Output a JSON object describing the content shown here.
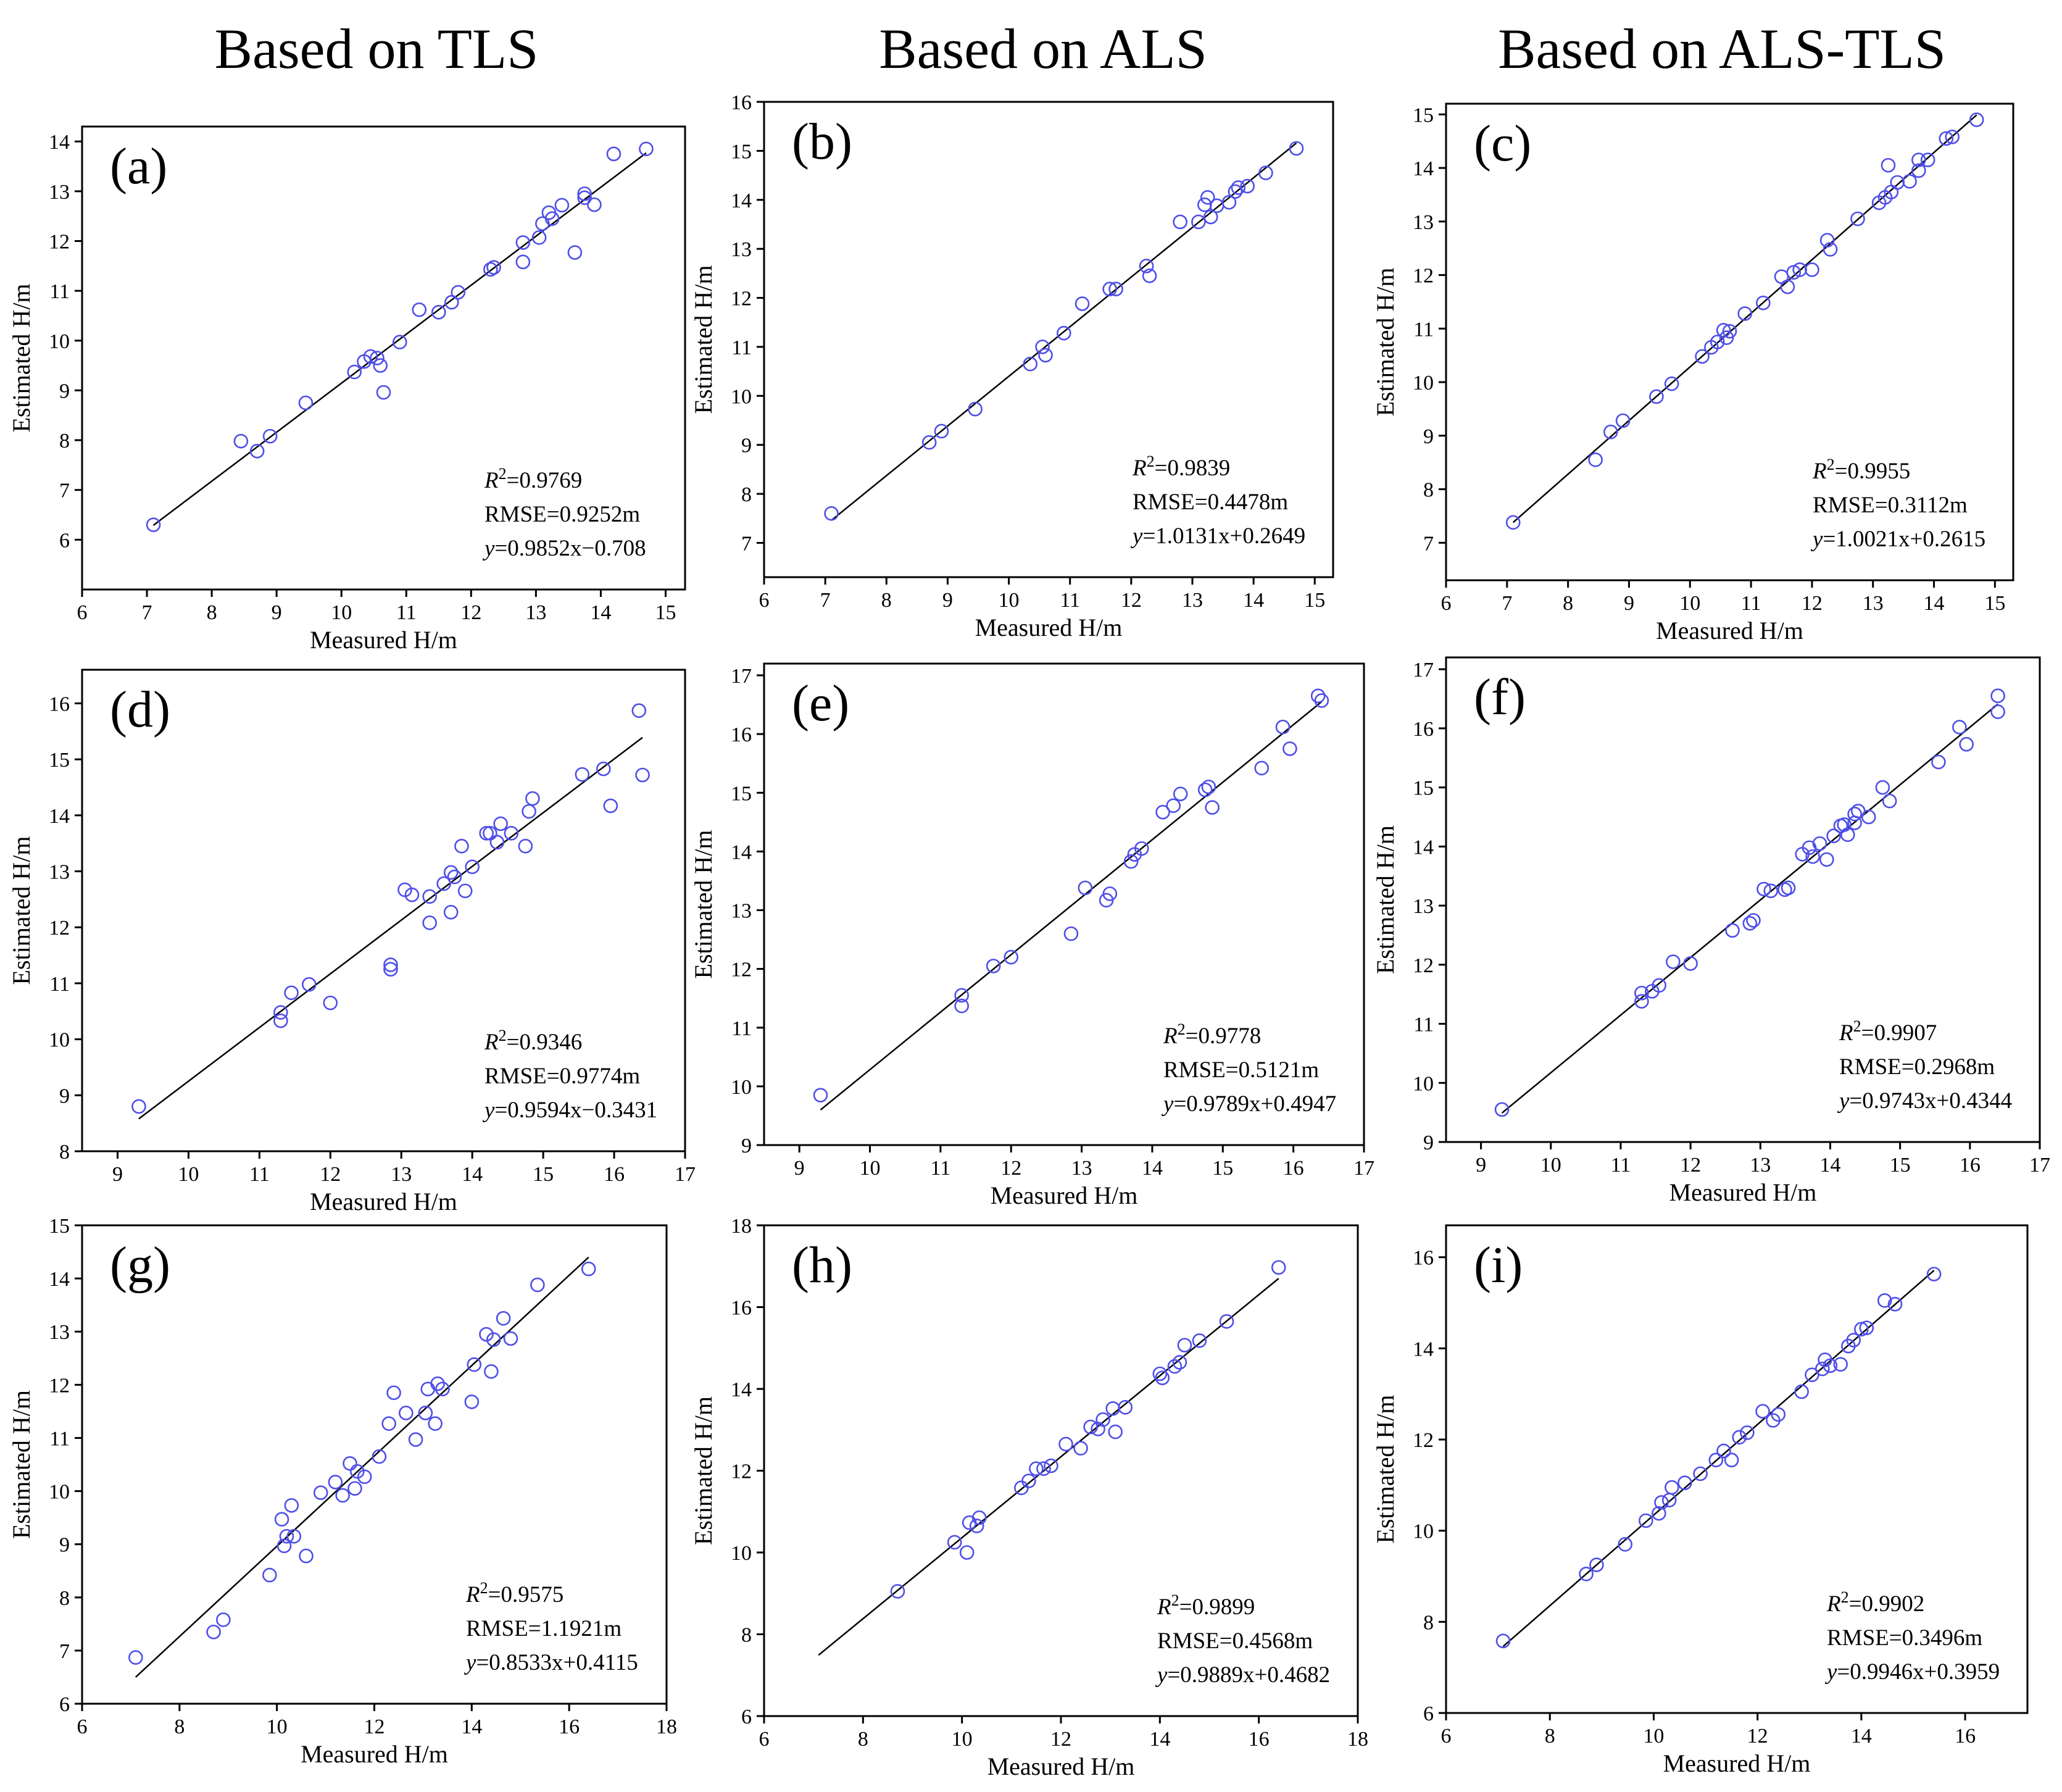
{
  "column_titles": [
    "Based  on TLS",
    "Based  on ALS",
    "Based  on ALS-TLS"
  ],
  "colors": {
    "marker": "#4f4fe8",
    "line": "#000000",
    "frame": "#000000"
  },
  "chart_data": [
    {
      "type": "scatter",
      "panel": "(a)",
      "xlabel": "Measured H/m",
      "ylabel": "Estimated H/m",
      "xlim": [
        6,
        15.3
      ],
      "ylim": [
        5,
        14.3
      ],
      "xticks": [
        6,
        7,
        8,
        9,
        10,
        11,
        12,
        13,
        14,
        15
      ],
      "yticks": [
        6,
        7,
        8,
        9,
        10,
        11,
        12,
        13,
        14
      ],
      "fit": {
        "r2": "0.9769",
        "rmse": "RMSE=0.9252m",
        "eq": "=0.9852x−0.708",
        "x0": 7.1,
        "x1": 14.7,
        "y0": 6.29,
        "y1": 13.77
      },
      "x": [
        7.1,
        8.45,
        8.7,
        8.9,
        9.45,
        10.2,
        10.35,
        10.45,
        10.55,
        10.6,
        10.65,
        10.9,
        11.2,
        11.5,
        11.7,
        11.8,
        12.3,
        12.35,
        12.8,
        12.8,
        13.05,
        13.1,
        13.2,
        13.25,
        13.4,
        13.6,
        13.75,
        13.75,
        13.9,
        14.2,
        14.7
      ],
      "y": [
        6.3,
        7.98,
        7.78,
        8.08,
        8.75,
        9.37,
        9.58,
        9.68,
        9.65,
        9.5,
        8.96,
        9.97,
        10.62,
        10.57,
        10.77,
        10.97,
        11.43,
        11.47,
        11.97,
        11.58,
        12.07,
        12.35,
        12.57,
        12.45,
        12.72,
        11.77,
        12.87,
        12.95,
        12.73,
        13.75,
        13.85
      ]
    },
    {
      "type": "scatter",
      "panel": "(b)",
      "xlabel": "Measured H/m",
      "ylabel": "Estimated H/m",
      "xlim": [
        6,
        15.3
      ],
      "ylim": [
        6.3,
        16
      ],
      "xticks": [
        6,
        7,
        8,
        9,
        10,
        11,
        12,
        13,
        14,
        15
      ],
      "yticks": [
        7,
        8,
        9,
        10,
        11,
        12,
        13,
        14,
        15,
        16
      ],
      "fit": {
        "r2": "0.9839",
        "rmse": "RMSE=0.4478m",
        "eq": "=1.0131x+0.2649",
        "x0": 7.1,
        "x1": 14.7,
        "y0": 7.46,
        "y1": 15.16
      },
      "x": [
        7.1,
        8.7,
        8.9,
        9.45,
        10.35,
        10.55,
        10.6,
        10.9,
        11.2,
        11.65,
        11.75,
        12.25,
        12.3,
        12.8,
        13.1,
        13.2,
        13.25,
        13.3,
        13.4,
        13.6,
        13.7,
        13.75,
        13.9,
        14.2,
        14.7
      ],
      "y": [
        7.6,
        9.05,
        9.28,
        9.73,
        10.65,
        11.0,
        10.83,
        11.28,
        11.88,
        12.18,
        12.18,
        12.65,
        12.45,
        13.55,
        13.55,
        13.9,
        14.05,
        13.65,
        13.88,
        13.95,
        14.17,
        14.25,
        14.28,
        14.55,
        15.05
      ]
    },
    {
      "type": "scatter",
      "panel": "(c)",
      "xlabel": "Measured H/m",
      "ylabel": "Estimated H/m",
      "xlim": [
        6,
        15.3
      ],
      "ylim": [
        6.3,
        15.2
      ],
      "xticks": [
        6,
        7,
        8,
        9,
        10,
        11,
        12,
        13,
        14,
        15
      ],
      "yticks": [
        7,
        8,
        9,
        10,
        11,
        12,
        13,
        14,
        15
      ],
      "fit": {
        "r2": "0.9955",
        "rmse": "RMSE=0.3112m",
        "eq": "=1.0021x+0.2615",
        "x0": 7.1,
        "x1": 14.7,
        "y0": 7.38,
        "y1": 14.99
      },
      "x": [
        7.1,
        8.45,
        8.7,
        8.9,
        9.45,
        9.7,
        10.2,
        10.35,
        10.45,
        10.55,
        10.6,
        10.65,
        10.9,
        11.2,
        11.5,
        11.6,
        11.7,
        11.8,
        12.0,
        12.25,
        12.3,
        12.75,
        13.1,
        13.2,
        13.25,
        13.3,
        13.4,
        13.6,
        13.75,
        13.75,
        13.9,
        14.2,
        14.3,
        14.7
      ],
      "y": [
        7.38,
        8.55,
        9.07,
        9.28,
        9.73,
        9.97,
        10.48,
        10.65,
        10.75,
        10.97,
        10.83,
        10.95,
        11.28,
        11.48,
        11.97,
        11.78,
        12.05,
        12.1,
        12.1,
        12.65,
        12.48,
        13.05,
        13.35,
        13.45,
        14.05,
        13.55,
        13.73,
        13.75,
        13.95,
        14.15,
        14.15,
        14.55,
        14.58,
        14.9
      ]
    },
    {
      "type": "scatter",
      "panel": "(d)",
      "xlabel": "Measured H/m",
      "ylabel": "Estimated H/m",
      "xlim": [
        8.5,
        17
      ],
      "ylim": [
        8,
        16.6
      ],
      "xticks": [
        9,
        10,
        11,
        12,
        13,
        14,
        15,
        16,
        17
      ],
      "yticks": [
        8,
        9,
        10,
        11,
        12,
        13,
        14,
        15,
        16
      ],
      "fit": {
        "r2": "0.9346",
        "rmse": "RMSE=0.9774m",
        "eq": "=0.9594x−0.3431",
        "x0": 9.3,
        "x1": 16.4,
        "y0": 8.58,
        "y1": 15.39
      },
      "x": [
        9.3,
        11.3,
        11.3,
        11.45,
        11.7,
        12.0,
        12.85,
        12.85,
        13.05,
        13.15,
        13.4,
        13.4,
        13.6,
        13.7,
        13.7,
        13.75,
        13.85,
        13.9,
        14.0,
        14.2,
        14.25,
        14.35,
        14.4,
        14.55,
        14.75,
        14.8,
        14.85,
        15.55,
        15.85,
        15.95,
        16.35,
        16.4
      ],
      "y": [
        8.8,
        10.48,
        10.33,
        10.83,
        10.98,
        10.65,
        11.33,
        11.25,
        12.67,
        12.58,
        12.55,
        12.08,
        12.78,
        12.98,
        12.27,
        12.9,
        13.45,
        12.65,
        13.08,
        13.68,
        13.68,
        13.52,
        13.85,
        13.68,
        13.45,
        14.07,
        14.3,
        14.73,
        14.83,
        14.17,
        15.87,
        14.72
      ]
    },
    {
      "type": "scatter",
      "panel": "(e)",
      "xlabel": "Measured H/m",
      "ylabel": "Estimated H/m",
      "xlim": [
        8.5,
        17
      ],
      "ylim": [
        9,
        17.2
      ],
      "xticks": [
        9,
        10,
        11,
        12,
        13,
        14,
        15,
        16,
        17
      ],
      "yticks": [
        9,
        10,
        11,
        12,
        13,
        14,
        15,
        16,
        17
      ],
      "fit": {
        "r2": "0.9778",
        "rmse": "RMSE=0.5121m",
        "eq": "=0.9789x+0.4947",
        "x0": 9.3,
        "x1": 16.4,
        "y0": 9.6,
        "y1": 16.55
      },
      "x": [
        9.3,
        11.3,
        11.3,
        11.75,
        12.0,
        12.85,
        13.05,
        13.35,
        13.4,
        13.7,
        13.75,
        13.85,
        14.15,
        14.3,
        14.4,
        14.75,
        14.8,
        14.85,
        15.55,
        15.85,
        15.95,
        16.35,
        16.4
      ],
      "y": [
        9.85,
        11.55,
        11.37,
        12.05,
        12.2,
        12.6,
        13.38,
        13.17,
        13.28,
        13.83,
        13.95,
        14.05,
        14.67,
        14.78,
        14.98,
        15.05,
        15.1,
        14.75,
        15.42,
        16.12,
        15.75,
        16.65,
        16.57
      ]
    },
    {
      "type": "scatter",
      "panel": "(f)",
      "xlabel": "Measured H/m",
      "ylabel": "Estimated H/m",
      "xlim": [
        8.5,
        17
      ],
      "ylim": [
        9,
        17.2
      ],
      "xticks": [
        9,
        10,
        11,
        12,
        13,
        14,
        15,
        16,
        17
      ],
      "yticks": [
        9,
        10,
        11,
        12,
        13,
        14,
        15,
        16,
        17
      ],
      "fit": {
        "r2": "0.9907",
        "rmse": "RMSE=0.2968m",
        "eq": "=0.9743x+0.4344",
        "x0": 9.3,
        "x1": 16.4,
        "y0": 9.49,
        "y1": 16.41
      },
      "x": [
        9.3,
        11.3,
        11.3,
        11.45,
        11.55,
        11.75,
        12.0,
        12.6,
        12.85,
        12.9,
        13.05,
        13.15,
        13.35,
        13.4,
        13.6,
        13.7,
        13.75,
        13.85,
        13.95,
        14.05,
        14.15,
        14.2,
        14.25,
        14.35,
        14.35,
        14.4,
        14.55,
        14.75,
        14.85,
        15.55,
        15.85,
        15.95,
        16.4,
        16.4
      ],
      "y": [
        9.55,
        11.52,
        11.38,
        11.55,
        11.65,
        12.05,
        12.02,
        12.58,
        12.7,
        12.75,
        13.28,
        13.25,
        13.27,
        13.3,
        13.87,
        13.98,
        13.83,
        14.05,
        13.78,
        14.18,
        14.35,
        14.37,
        14.2,
        14.4,
        14.55,
        14.6,
        14.5,
        15.0,
        14.77,
        15.43,
        16.02,
        15.73,
        16.55,
        16.28
      ]
    },
    {
      "type": "scatter",
      "panel": "(g)",
      "xlabel": "Measured H/m",
      "ylabel": "Estimated H/m",
      "xlim": [
        6,
        18
      ],
      "ylim": [
        6,
        15
      ],
      "xticks": [
        6,
        8,
        10,
        12,
        14,
        16,
        18
      ],
      "yticks": [
        6,
        7,
        8,
        9,
        10,
        11,
        12,
        13,
        14,
        15
      ],
      "fit": {
        "r2": "0.9575",
        "rmse": "RMSE=1.1921m",
        "eq": "=0.8533x+0.4115",
        "x0": 7.1,
        "x1": 16.4,
        "y0": 6.5,
        "y1": 14.4
      },
      "x": [
        7.1,
        8.7,
        8.9,
        9.85,
        10.1,
        10.15,
        10.2,
        10.3,
        10.35,
        10.6,
        10.9,
        11.2,
        11.35,
        11.5,
        11.6,
        11.65,
        11.8,
        12.1,
        12.3,
        12.4,
        12.65,
        12.85,
        13.05,
        13.1,
        13.25,
        13.3,
        13.4,
        14.0,
        14.05,
        14.3,
        14.4,
        14.45,
        14.65,
        14.8,
        15.35,
        16.4
      ],
      "y": [
        6.87,
        7.35,
        7.58,
        8.42,
        9.47,
        8.97,
        9.15,
        9.73,
        9.15,
        8.78,
        9.97,
        10.17,
        9.92,
        10.52,
        10.05,
        10.37,
        10.27,
        10.65,
        11.27,
        11.85,
        11.47,
        10.97,
        11.47,
        11.92,
        11.27,
        12.02,
        11.92,
        11.68,
        12.38,
        12.95,
        12.25,
        12.85,
        13.25,
        12.87,
        13.88,
        14.18
      ]
    },
    {
      "type": "scatter",
      "panel": "(h)",
      "xlabel": "Measured H/m",
      "ylabel": "Estimated H/m",
      "xlim": [
        6,
        18
      ],
      "ylim": [
        6,
        18
      ],
      "xticks": [
        6,
        8,
        10,
        12,
        14,
        16,
        18
      ],
      "yticks": [
        6,
        8,
        10,
        12,
        14,
        16,
        18
      ],
      "fit": {
        "r2": "0.9899",
        "rmse": "RMSE=0.4568m",
        "eq": "=0.9889x+0.4682",
        "x0": 7.1,
        "x1": 16.4,
        "y0": 7.49,
        "y1": 16.7
      },
      "x": [
        8.7,
        9.85,
        10.1,
        10.15,
        10.3,
        10.35,
        11.2,
        11.35,
        11.5,
        11.65,
        11.8,
        12.1,
        12.4,
        12.6,
        12.75,
        12.85,
        13.05,
        13.1,
        13.3,
        14.0,
        14.05,
        14.3,
        14.4,
        14.5,
        14.8,
        15.35,
        16.4
      ],
      "y": [
        9.05,
        10.25,
        10.0,
        10.73,
        10.65,
        10.85,
        11.58,
        11.75,
        12.05,
        12.05,
        12.12,
        12.65,
        12.55,
        13.07,
        13.02,
        13.25,
        13.52,
        12.95,
        13.55,
        14.37,
        14.27,
        14.55,
        14.65,
        15.07,
        15.18,
        15.65,
        16.97
      ]
    },
    {
      "type": "scatter",
      "panel": "(i)",
      "xlabel": "Measured H/m",
      "ylabel": "Estimated H/m",
      "xlim": [
        6,
        17.2
      ],
      "ylim": [
        6,
        16.7
      ],
      "xticks": [
        6,
        8,
        10,
        12,
        14,
        16
      ],
      "yticks": [
        6,
        8,
        10,
        12,
        14,
        16
      ],
      "fit": {
        "r2": "0.9902",
        "rmse": "RMSE=0.3496m",
        "eq": "=0.9946x+0.3959",
        "x0": 7.1,
        "x1": 15.4,
        "y0": 7.46,
        "y1": 15.71
      },
      "x": [
        7.1,
        8.7,
        8.9,
        9.45,
        9.85,
        10.1,
        10.15,
        10.3,
        10.35,
        10.6,
        10.9,
        11.2,
        11.35,
        11.5,
        11.65,
        11.8,
        12.1,
        12.3,
        12.4,
        12.85,
        13.05,
        13.25,
        13.3,
        13.4,
        13.6,
        13.75,
        13.85,
        14.0,
        14.1,
        14.45,
        14.65,
        15.4
      ],
      "y": [
        7.58,
        9.05,
        9.25,
        9.7,
        10.22,
        10.38,
        10.62,
        10.67,
        10.95,
        11.05,
        11.25,
        11.55,
        11.75,
        11.55,
        12.05,
        12.15,
        12.62,
        12.42,
        12.55,
        13.05,
        13.42,
        13.55,
        13.75,
        13.62,
        13.65,
        14.05,
        14.18,
        14.42,
        14.45,
        15.05,
        14.97,
        15.63
      ]
    }
  ]
}
